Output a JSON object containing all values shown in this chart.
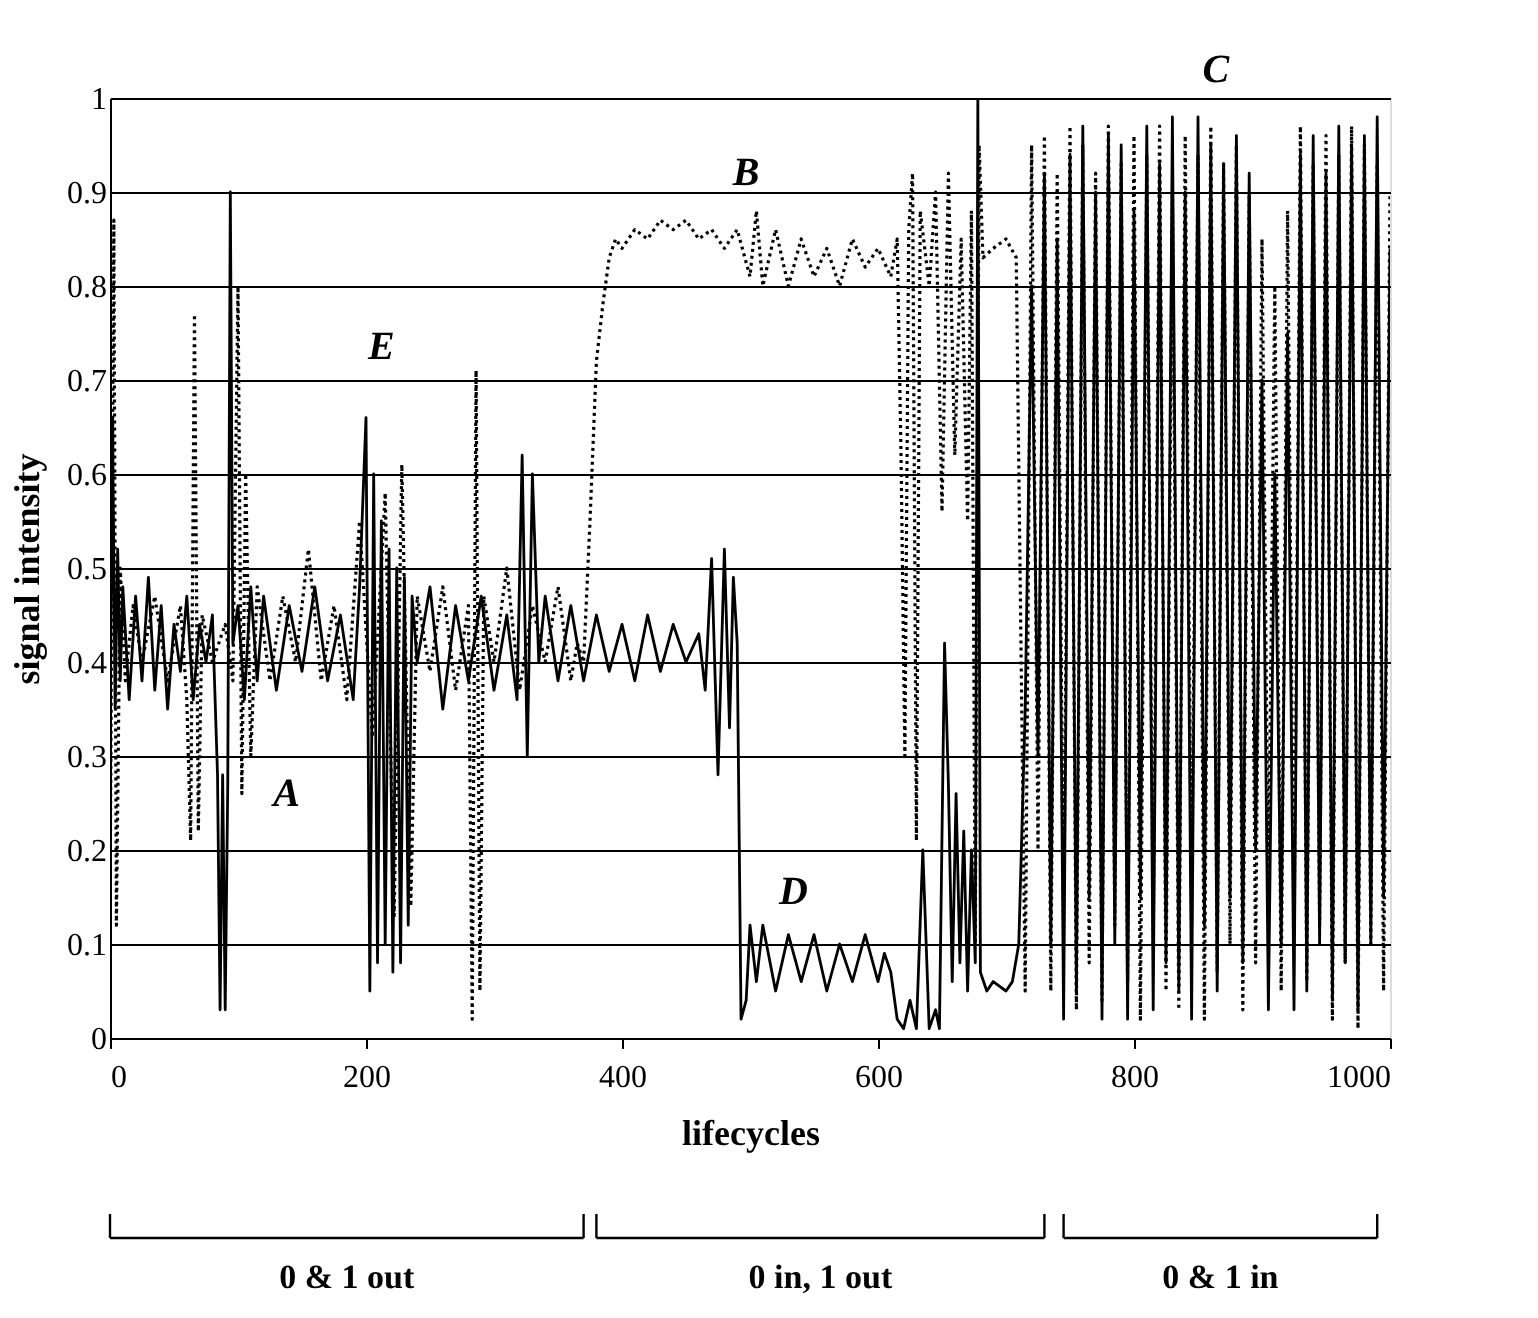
{
  "chart_data": {
    "type": "line",
    "xlabel": "lifecycles",
    "ylabel": "signal intensity",
    "xlim": [
      0,
      1000
    ],
    "xticks": [
      0,
      200,
      400,
      600,
      800,
      1000
    ],
    "ylim": [
      0,
      1
    ],
    "yticks": [
      0,
      0.1,
      0.2,
      0.3,
      0.4,
      0.5,
      0.6,
      0.7,
      0.8,
      0.9,
      1
    ],
    "grid": "y",
    "annotations": [
      "E",
      "A",
      "B",
      "D",
      "C",
      "0 & 1 out",
      "0 in, 1 out",
      "0 & 1 in"
    ],
    "series": [
      {
        "color": "#000000",
        "line_style": "solid",
        "x": [
          0,
          2,
          4,
          6,
          8,
          10,
          15,
          20,
          25,
          30,
          35,
          40,
          45,
          50,
          55,
          60,
          65,
          70,
          75,
          80,
          84,
          86,
          88,
          90,
          92,
          94,
          96,
          100,
          105,
          110,
          115,
          120,
          130,
          140,
          150,
          160,
          170,
          180,
          190,
          195,
          200,
          203,
          206,
          209,
          212,
          215,
          218,
          221,
          224,
          227,
          230,
          233,
          236,
          240,
          250,
          260,
          270,
          280,
          290,
          300,
          310,
          318,
          322,
          326,
          330,
          335,
          340,
          350,
          360,
          370,
          380,
          390,
          400,
          410,
          420,
          430,
          440,
          450,
          460,
          465,
          470,
          475,
          480,
          484,
          487,
          490,
          493,
          497,
          500,
          505,
          510,
          520,
          530,
          540,
          550,
          560,
          570,
          580,
          590,
          600,
          605,
          610,
          615,
          620,
          625,
          630,
          635,
          640,
          645,
          648,
          652,
          655,
          658,
          661,
          664,
          667,
          670,
          673,
          676,
          678,
          680,
          685,
          690,
          700,
          705,
          710,
          715,
          720,
          725,
          730,
          735,
          740,
          745,
          750,
          755,
          760,
          765,
          770,
          775,
          780,
          785,
          790,
          795,
          800,
          805,
          810,
          815,
          820,
          825,
          830,
          835,
          840,
          845,
          850,
          855,
          860,
          865,
          870,
          875,
          880,
          885,
          890,
          895,
          900,
          905,
          910,
          915,
          920,
          925,
          930,
          935,
          940,
          945,
          950,
          955,
          960,
          965,
          970,
          975,
          980,
          985,
          990,
          995,
          1000
        ],
        "values": [
          0.3,
          0.66,
          0.35,
          0.52,
          0.38,
          0.48,
          0.36,
          0.47,
          0.38,
          0.49,
          0.37,
          0.46,
          0.35,
          0.44,
          0.39,
          0.47,
          0.36,
          0.44,
          0.4,
          0.45,
          0.28,
          0.03,
          0.28,
          0.03,
          0.27,
          0.9,
          0.42,
          0.46,
          0.36,
          0.48,
          0.38,
          0.47,
          0.37,
          0.46,
          0.39,
          0.48,
          0.38,
          0.45,
          0.36,
          0.48,
          0.66,
          0.05,
          0.6,
          0.08,
          0.55,
          0.1,
          0.52,
          0.07,
          0.5,
          0.08,
          0.49,
          0.12,
          0.47,
          0.4,
          0.48,
          0.35,
          0.46,
          0.38,
          0.47,
          0.37,
          0.45,
          0.36,
          0.62,
          0.3,
          0.6,
          0.4,
          0.47,
          0.38,
          0.46,
          0.38,
          0.45,
          0.39,
          0.44,
          0.38,
          0.45,
          0.39,
          0.44,
          0.4,
          0.43,
          0.37,
          0.51,
          0.28,
          0.52,
          0.33,
          0.49,
          0.42,
          0.02,
          0.04,
          0.12,
          0.06,
          0.12,
          0.05,
          0.11,
          0.06,
          0.11,
          0.05,
          0.1,
          0.06,
          0.11,
          0.06,
          0.09,
          0.07,
          0.02,
          0.01,
          0.04,
          0.01,
          0.2,
          0.01,
          0.03,
          0.01,
          0.42,
          0.27,
          0.06,
          0.26,
          0.08,
          0.22,
          0.05,
          0.2,
          0.08,
          1.0,
          0.07,
          0.05,
          0.06,
          0.05,
          0.06,
          0.1,
          0.35,
          0.8,
          0.3,
          0.92,
          0.1,
          0.85,
          0.02,
          0.94,
          0.05,
          0.97,
          0.15,
          0.9,
          0.02,
          0.96,
          0.1,
          0.95,
          0.02,
          0.88,
          0.15,
          0.97,
          0.03,
          0.93,
          0.08,
          0.98,
          0.05,
          0.9,
          0.02,
          0.98,
          0.12,
          0.95,
          0.05,
          0.93,
          0.15,
          0.96,
          0.08,
          0.92,
          0.2,
          0.7,
          0.03,
          0.6,
          0.1,
          0.75,
          0.03,
          0.94,
          0.05,
          0.96,
          0.1,
          0.92,
          0.04,
          0.97,
          0.08,
          0.95,
          0.03,
          0.96,
          0.1,
          0.98,
          0.15,
          0.84
        ]
      },
      {
        "color": "#000000",
        "line_style": "dotted",
        "x": [
          0,
          3,
          5,
          8,
          12,
          18,
          25,
          35,
          45,
          55,
          60,
          63,
          66,
          69,
          72,
          80,
          90,
          96,
          100,
          103,
          106,
          110,
          115,
          125,
          135,
          145,
          155,
          165,
          175,
          185,
          195,
          205,
          215,
          222,
          228,
          235,
          240,
          250,
          260,
          270,
          280,
          283,
          286,
          289,
          292,
          300,
          310,
          320,
          330,
          340,
          350,
          360,
          365,
          370,
          375,
          380,
          385,
          390,
          395,
          400,
          410,
          420,
          430,
          440,
          450,
          460,
          470,
          480,
          490,
          500,
          505,
          510,
          520,
          530,
          540,
          550,
          560,
          570,
          580,
          590,
          600,
          610,
          615,
          618,
          621,
          624,
          627,
          630,
          633,
          640,
          645,
          650,
          655,
          660,
          665,
          670,
          673,
          676,
          679,
          682,
          690,
          700,
          708,
          715,
          720,
          725,
          730,
          735,
          740,
          745,
          750,
          755,
          760,
          765,
          770,
          775,
          780,
          785,
          790,
          795,
          800,
          805,
          810,
          815,
          820,
          825,
          830,
          835,
          840,
          845,
          850,
          855,
          860,
          865,
          870,
          875,
          880,
          885,
          890,
          895,
          900,
          905,
          910,
          915,
          920,
          925,
          930,
          935,
          940,
          945,
          950,
          955,
          960,
          965,
          970,
          975,
          980,
          985,
          990,
          995,
          1000
        ],
        "values": [
          0.13,
          0.87,
          0.12,
          0.5,
          0.38,
          0.46,
          0.4,
          0.47,
          0.38,
          0.46,
          0.36,
          0.21,
          0.77,
          0.22,
          0.45,
          0.4,
          0.44,
          0.38,
          0.8,
          0.26,
          0.6,
          0.3,
          0.48,
          0.38,
          0.47,
          0.4,
          0.52,
          0.38,
          0.46,
          0.36,
          0.55,
          0.32,
          0.58,
          0.13,
          0.61,
          0.14,
          0.47,
          0.39,
          0.48,
          0.37,
          0.46,
          0.02,
          0.71,
          0.05,
          0.47,
          0.4,
          0.5,
          0.37,
          0.46,
          0.4,
          0.48,
          0.38,
          0.42,
          0.4,
          0.55,
          0.72,
          0.78,
          0.83,
          0.85,
          0.84,
          0.86,
          0.85,
          0.87,
          0.86,
          0.87,
          0.85,
          0.86,
          0.84,
          0.86,
          0.81,
          0.88,
          0.8,
          0.86,
          0.8,
          0.85,
          0.81,
          0.84,
          0.8,
          0.85,
          0.82,
          0.84,
          0.81,
          0.85,
          0.62,
          0.3,
          0.86,
          0.92,
          0.21,
          0.88,
          0.8,
          0.9,
          0.56,
          0.92,
          0.62,
          0.85,
          0.55,
          0.88,
          0.1,
          0.95,
          0.83,
          0.84,
          0.85,
          0.83,
          0.05,
          0.95,
          0.2,
          0.96,
          0.05,
          0.92,
          0.1,
          0.97,
          0.03,
          0.95,
          0.08,
          0.92,
          0.04,
          0.97,
          0.12,
          0.93,
          0.06,
          0.96,
          0.02,
          0.94,
          0.1,
          0.97,
          0.05,
          0.9,
          0.03,
          0.96,
          0.12,
          0.94,
          0.02,
          0.97,
          0.07,
          0.93,
          0.1,
          0.95,
          0.03,
          0.9,
          0.08,
          0.85,
          0.15,
          0.8,
          0.05,
          0.88,
          0.1,
          0.97,
          0.06,
          0.93,
          0.12,
          0.96,
          0.02,
          0.94,
          0.08,
          0.97,
          0.01,
          0.95,
          0.1,
          0.93,
          0.05,
          0.9
        ]
      }
    ]
  }
}
